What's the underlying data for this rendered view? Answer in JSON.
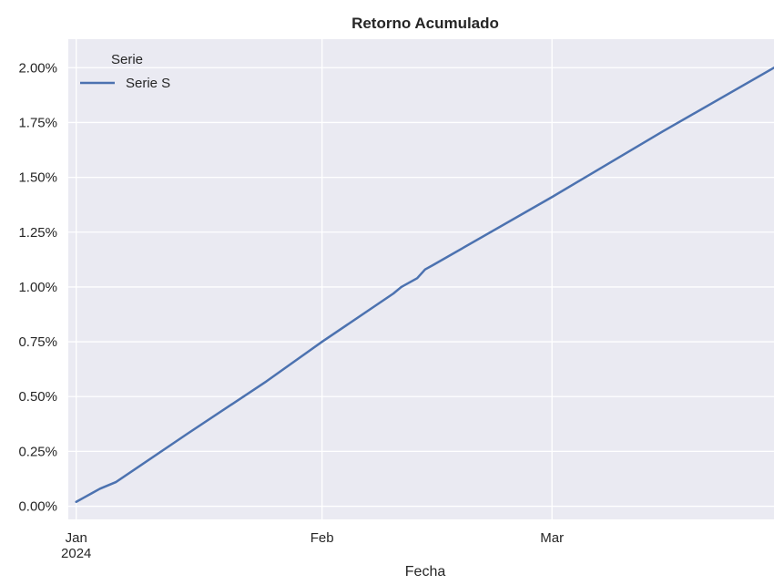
{
  "chart_data": {
    "type": "line",
    "title": "Retorno Acumulado",
    "xlabel": "Fecha",
    "ylabel": "",
    "x_ticks": [
      {
        "date": "2024-01-01",
        "label": "Jan",
        "sublabel": "2024"
      },
      {
        "date": "2024-02-01",
        "label": "Feb",
        "sublabel": ""
      },
      {
        "date": "2024-03-01",
        "label": "Mar",
        "sublabel": ""
      }
    ],
    "xlim": [
      "2023-12-31",
      "2024-03-29"
    ],
    "y_ticks": [
      0.0,
      0.25,
      0.5,
      0.75,
      1.0,
      1.25,
      1.5,
      1.75,
      2.0
    ],
    "y_tick_format": "percent_2dp",
    "ylim": [
      -0.06,
      2.13
    ],
    "grid": true,
    "legend": {
      "title": "Serie",
      "position": "top-left"
    },
    "series": [
      {
        "name": "Serie S",
        "color": "#4c72b0",
        "points": [
          {
            "x": "2024-01-01",
            "y": 0.02
          },
          {
            "x": "2024-01-02",
            "y": 0.04
          },
          {
            "x": "2024-01-03",
            "y": 0.06
          },
          {
            "x": "2024-01-04",
            "y": 0.08
          },
          {
            "x": "2024-01-06",
            "y": 0.11
          },
          {
            "x": "2024-01-15",
            "y": 0.33
          },
          {
            "x": "2024-01-25",
            "y": 0.57
          },
          {
            "x": "2024-02-01",
            "y": 0.75
          },
          {
            "x": "2024-02-10",
            "y": 0.97
          },
          {
            "x": "2024-02-11",
            "y": 1.0
          },
          {
            "x": "2024-02-13",
            "y": 1.04
          },
          {
            "x": "2024-02-14",
            "y": 1.08
          },
          {
            "x": "2024-02-15",
            "y": 1.1
          },
          {
            "x": "2024-03-01",
            "y": 1.41
          },
          {
            "x": "2024-03-15",
            "y": 1.71
          },
          {
            "x": "2024-03-29",
            "y": 2.0
          }
        ]
      }
    ]
  }
}
